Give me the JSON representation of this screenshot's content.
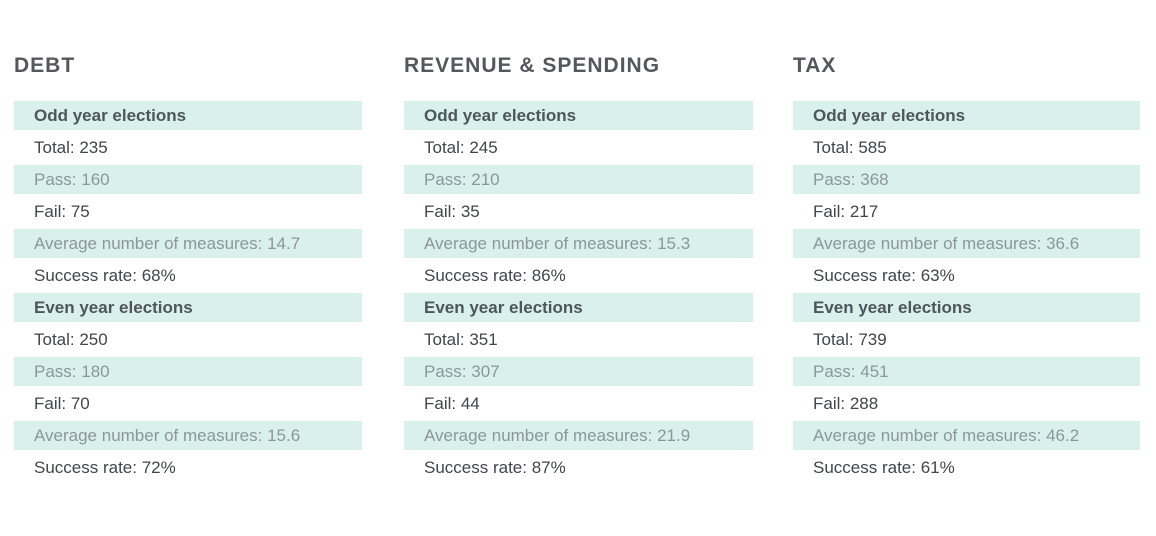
{
  "colors": {
    "background": "#ffffff",
    "row_shaded_bg": "#d9f0ed",
    "title_text": "#54585c",
    "header_text": "#4c565b",
    "plain_text": "#40464b",
    "shaded_text": "#8b9799"
  },
  "columns": [
    {
      "title": "DEBT",
      "rows": [
        {
          "type": "header",
          "text": "Odd year elections"
        },
        {
          "type": "plain",
          "text": "Total: 235"
        },
        {
          "type": "shaded",
          "text": "Pass: 160"
        },
        {
          "type": "plain",
          "text": "Fail: 75"
        },
        {
          "type": "shaded",
          "text": "Average number of measures: 14.7"
        },
        {
          "type": "plain",
          "text": "Success rate: 68%"
        },
        {
          "type": "header",
          "text": "Even year elections"
        },
        {
          "type": "plain",
          "text": "Total: 250"
        },
        {
          "type": "shaded",
          "text": "Pass: 180"
        },
        {
          "type": "plain",
          "text": "Fail: 70"
        },
        {
          "type": "shaded",
          "text": "Average number of measures: 15.6"
        },
        {
          "type": "plain",
          "text": "Success rate: 72%"
        }
      ]
    },
    {
      "title": "REVENUE & SPENDING",
      "rows": [
        {
          "type": "header",
          "text": "Odd year elections"
        },
        {
          "type": "plain",
          "text": "Total: 245"
        },
        {
          "type": "shaded",
          "text": "Pass: 210"
        },
        {
          "type": "plain",
          "text": "Fail: 35"
        },
        {
          "type": "shaded",
          "text": "Average number of measures: 15.3"
        },
        {
          "type": "plain",
          "text": "Success rate: 86%"
        },
        {
          "type": "header",
          "text": "Even year elections"
        },
        {
          "type": "plain",
          "text": "Total: 351"
        },
        {
          "type": "shaded",
          "text": "Pass: 307"
        },
        {
          "type": "plain",
          "text": "Fail: 44"
        },
        {
          "type": "shaded",
          "text": "Average number of measures: 21.9"
        },
        {
          "type": "plain",
          "text": "Success rate: 87%"
        }
      ]
    },
    {
      "title": "TAX",
      "rows": [
        {
          "type": "header",
          "text": "Odd year elections"
        },
        {
          "type": "plain",
          "text": "Total: 585"
        },
        {
          "type": "shaded",
          "text": "Pass: 368"
        },
        {
          "type": "plain",
          "text": "Fail: 217"
        },
        {
          "type": "shaded",
          "text": "Average number of measures: 36.6"
        },
        {
          "type": "plain",
          "text": "Success rate: 63%"
        },
        {
          "type": "header",
          "text": "Even year elections"
        },
        {
          "type": "plain",
          "text": "Total: 739"
        },
        {
          "type": "shaded",
          "text": "Pass: 451"
        },
        {
          "type": "plain",
          "text": "Fail: 288"
        },
        {
          "type": "shaded",
          "text": "Average number of measures: 46.2"
        },
        {
          "type": "plain",
          "text": "Success rate: 61%"
        }
      ]
    }
  ],
  "chart_data": {
    "type": "table",
    "tables": [
      {
        "title": "DEBT",
        "groups": [
          {
            "name": "Odd year elections",
            "total": 235,
            "pass": 160,
            "fail": 75,
            "average_number_of_measures": 14.7,
            "success_rate": "68%"
          },
          {
            "name": "Even year elections",
            "total": 250,
            "pass": 180,
            "fail": 70,
            "average_number_of_measures": 15.6,
            "success_rate": "72%"
          }
        ]
      },
      {
        "title": "REVENUE & SPENDING",
        "groups": [
          {
            "name": "Odd year elections",
            "total": 245,
            "pass": 210,
            "fail": 35,
            "average_number_of_measures": 15.3,
            "success_rate": "86%"
          },
          {
            "name": "Even year elections",
            "total": 351,
            "pass": 307,
            "fail": 44,
            "average_number_of_measures": 21.9,
            "success_rate": "87%"
          }
        ]
      },
      {
        "title": "TAX",
        "groups": [
          {
            "name": "Odd year elections",
            "total": 585,
            "pass": 368,
            "fail": 217,
            "average_number_of_measures": 36.6,
            "success_rate": "63%"
          },
          {
            "name": "Even year elections",
            "total": 739,
            "pass": 451,
            "fail": 288,
            "average_number_of_measures": 46.2,
            "success_rate": "61%"
          }
        ]
      }
    ]
  }
}
